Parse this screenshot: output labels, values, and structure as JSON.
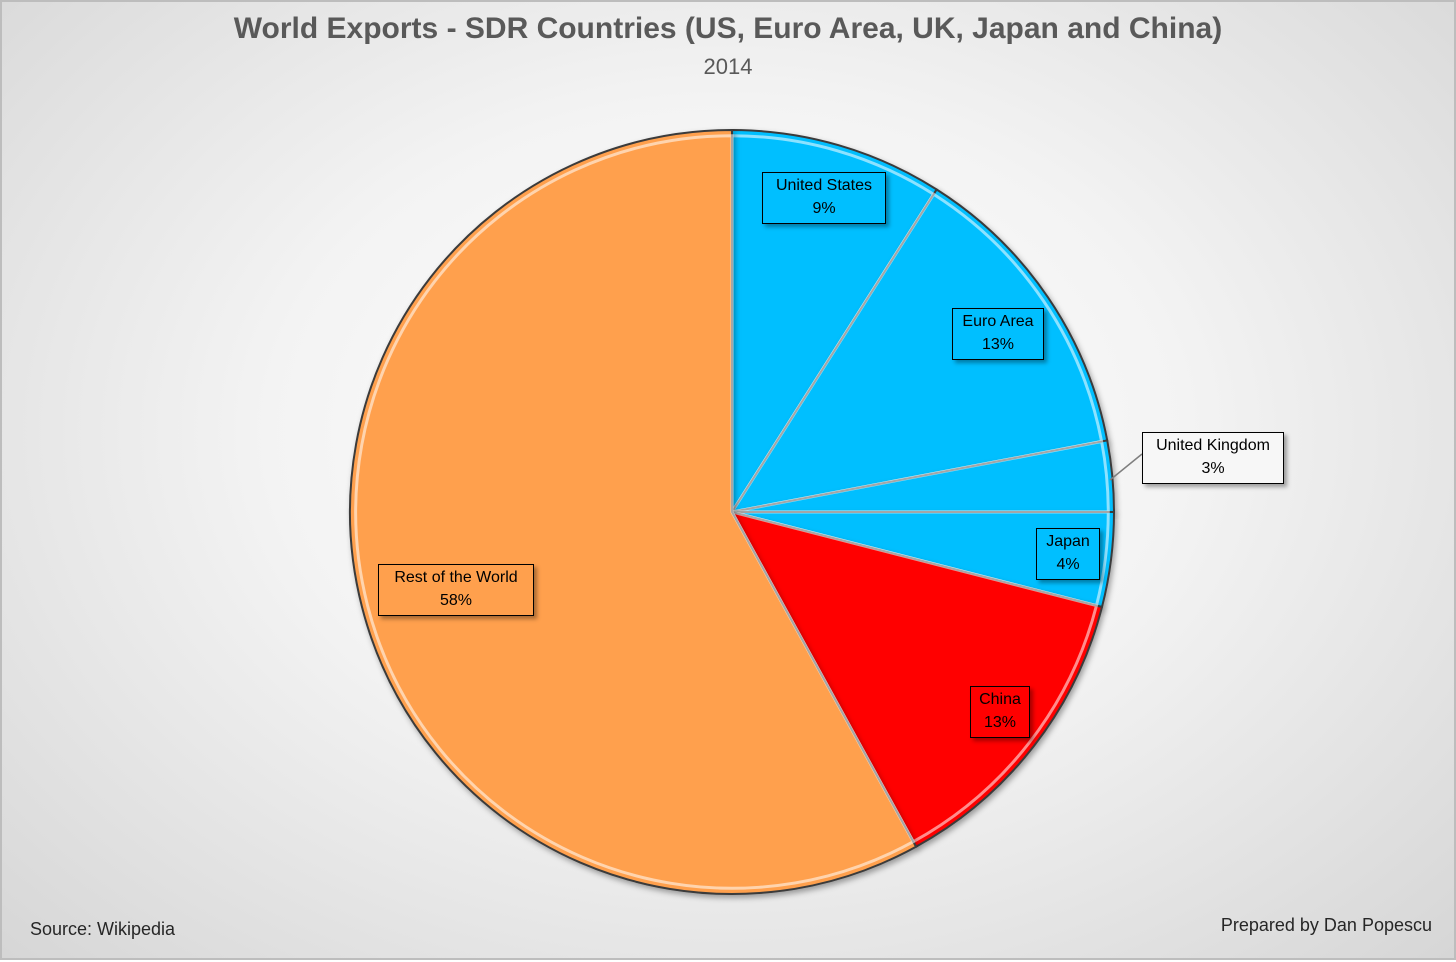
{
  "chart_data": {
    "type": "pie",
    "title": "World Exports - SDR Countries (US, Euro Area, UK, Japan and China)",
    "subtitle": "2014",
    "slices": [
      {
        "label": "United States",
        "value": 9,
        "value_label": "9%",
        "color": "#00BFFF"
      },
      {
        "label": "Euro Area",
        "value": 13,
        "value_label": "13%",
        "color": "#00BFFF"
      },
      {
        "label": "United Kingdom",
        "value": 3,
        "value_label": "3%",
        "color": "#00BFFF"
      },
      {
        "label": "Japan",
        "value": 4,
        "value_label": "4%",
        "color": "#00BFFF"
      },
      {
        "label": "China",
        "value": 13,
        "value_label": "13%",
        "color": "#FF0000"
      },
      {
        "label": "Rest of the World",
        "value": 58,
        "value_label": "58%",
        "color": "#FFA04D"
      }
    ]
  },
  "footer": {
    "source": "Source: Wikipedia",
    "author": "Prepared by Dan Popescu"
  }
}
